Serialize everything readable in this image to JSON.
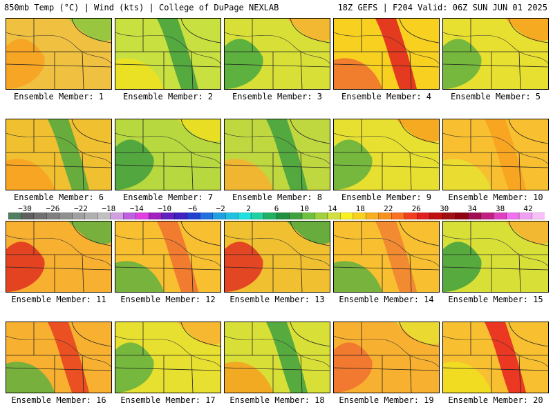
{
  "header": {
    "left_title": "850mb Temp (°C) | Wind (kts) | College of DuPage NEXLAB",
    "right_title": "18Z GEFS | F204 Valid: 06Z SUN JUN 01 2025"
  },
  "panels": [
    {
      "label": "Ensemble Member: 1",
      "base": "#f0c040",
      "blobs": [
        {
          "c": "#f8a020",
          "s": "rgba(248,160,32,0.9)"
        },
        {
          "c": "#88c840",
          "s": "rgba(136,200,64,0.8)"
        }
      ]
    },
    {
      "label": "Ensemble Member: 2",
      "base": "#c8e040",
      "blobs": [
        {
          "c": "#40a040"
        },
        {
          "c": "#f0e020"
        }
      ]
    },
    {
      "label": "Ensemble Member: 3",
      "base": "#d8e038",
      "blobs": [
        {
          "c": "#48a840"
        },
        {
          "c": "#f8b030"
        }
      ]
    },
    {
      "label": "Ensemble Member: 4",
      "base": "#f8d020",
      "blobs": [
        {
          "c": "#e02020"
        },
        {
          "c": "#f07030"
        }
      ]
    },
    {
      "label": "Ensemble Member: 5",
      "base": "#e8e030",
      "blobs": [
        {
          "c": "#60b040"
        },
        {
          "c": "#f8a020"
        }
      ]
    },
    {
      "label": "Ensemble Member: 6",
      "base": "#f0c030",
      "blobs": [
        {
          "c": "#50a840"
        },
        {
          "c": "#f8a020"
        }
      ]
    },
    {
      "label": "Ensemble Member: 7",
      "base": "#b8d840",
      "blobs": [
        {
          "c": "#40a040"
        },
        {
          "c": "#f0e020"
        }
      ]
    },
    {
      "label": "Ensemble Member: 8",
      "base": "#c0d840",
      "blobs": [
        {
          "c": "#40a040"
        },
        {
          "c": "#f8b030"
        }
      ]
    },
    {
      "label": "Ensemble Member: 9",
      "base": "#e8e030",
      "blobs": [
        {
          "c": "#60b040"
        },
        {
          "c": "#f8a020"
        }
      ]
    },
    {
      "label": "Ensemble Member: 10",
      "base": "#f8c030",
      "blobs": [
        {
          "c": "#f8a020"
        },
        {
          "c": "#e8e030"
        }
      ]
    },
    {
      "label": "Ensemble Member: 11",
      "base": "#f8b030",
      "blobs": [
        {
          "c": "#e03020"
        },
        {
          "c": "#60b040"
        }
      ]
    },
    {
      "label": "Ensemble Member: 12",
      "base": "#f8c030",
      "blobs": [
        {
          "c": "#f07030"
        },
        {
          "c": "#60b040"
        }
      ]
    },
    {
      "label": "Ensemble Member: 13",
      "base": "#f0c030",
      "blobs": [
        {
          "c": "#e03020"
        },
        {
          "c": "#50a840"
        }
      ]
    },
    {
      "label": "Ensemble Member: 14",
      "base": "#f8c030",
      "blobs": [
        {
          "c": "#f08030"
        },
        {
          "c": "#60b040"
        }
      ]
    },
    {
      "label": "Ensemble Member: 15",
      "base": "#d8e038",
      "blobs": [
        {
          "c": "#40a040"
        },
        {
          "c": "#f8b030"
        }
      ]
    },
    {
      "label": "Ensemble Member: 16",
      "base": "#f8b030",
      "blobs": [
        {
          "c": "#e84020"
        },
        {
          "c": "#60b040"
        }
      ]
    },
    {
      "label": "Ensemble Member: 17",
      "base": "#e8e030",
      "blobs": [
        {
          "c": "#60b040"
        },
        {
          "c": "#f8b030"
        }
      ]
    },
    {
      "label": "Ensemble Member: 18",
      "base": "#d8e038",
      "blobs": [
        {
          "c": "#40a040"
        },
        {
          "c": "#f8a020"
        }
      ]
    },
    {
      "label": "Ensemble Member: 19",
      "base": "#f8b030",
      "blobs": [
        {
          "c": "#f07030"
        },
        {
          "c": "#e8e030"
        }
      ]
    },
    {
      "label": "Ensemble Member: 20",
      "base": "#f8c030",
      "blobs": [
        {
          "c": "#e82020"
        },
        {
          "c": "#f0e020"
        }
      ]
    }
  ],
  "colorbar": {
    "labels": [
      "−30",
      "−26",
      "−22",
      "−18",
      "−14",
      "−10",
      "−6",
      "−2",
      "2",
      "6",
      "10",
      "14",
      "18",
      "22",
      "26",
      "30",
      "34",
      "38",
      "42"
    ],
    "colors": [
      "#508060",
      "#606060",
      "#707070",
      "#808080",
      "#909090",
      "#a0a0a0",
      "#b0b0b0",
      "#c0c0c0",
      "#d0a0e0",
      "#c060e0",
      "#e040e0",
      "#a020c0",
      "#6020c0",
      "#4020c0",
      "#2040d0",
      "#2070e0",
      "#20a0e0",
      "#20c0e0",
      "#20e0e0",
      "#20d0a0",
      "#20b060",
      "#209040",
      "#40a040",
      "#70c040",
      "#a0d040",
      "#d0e040",
      "#f8f020",
      "#f8d020",
      "#f8b020",
      "#f89020",
      "#f87020",
      "#f04020",
      "#e02020",
      "#c01010",
      "#a01010",
      "#900010",
      "#a01050",
      "#c02080",
      "#e040c0",
      "#f070f0",
      "#f0a0f0",
      "#f8c0f8"
    ]
  }
}
